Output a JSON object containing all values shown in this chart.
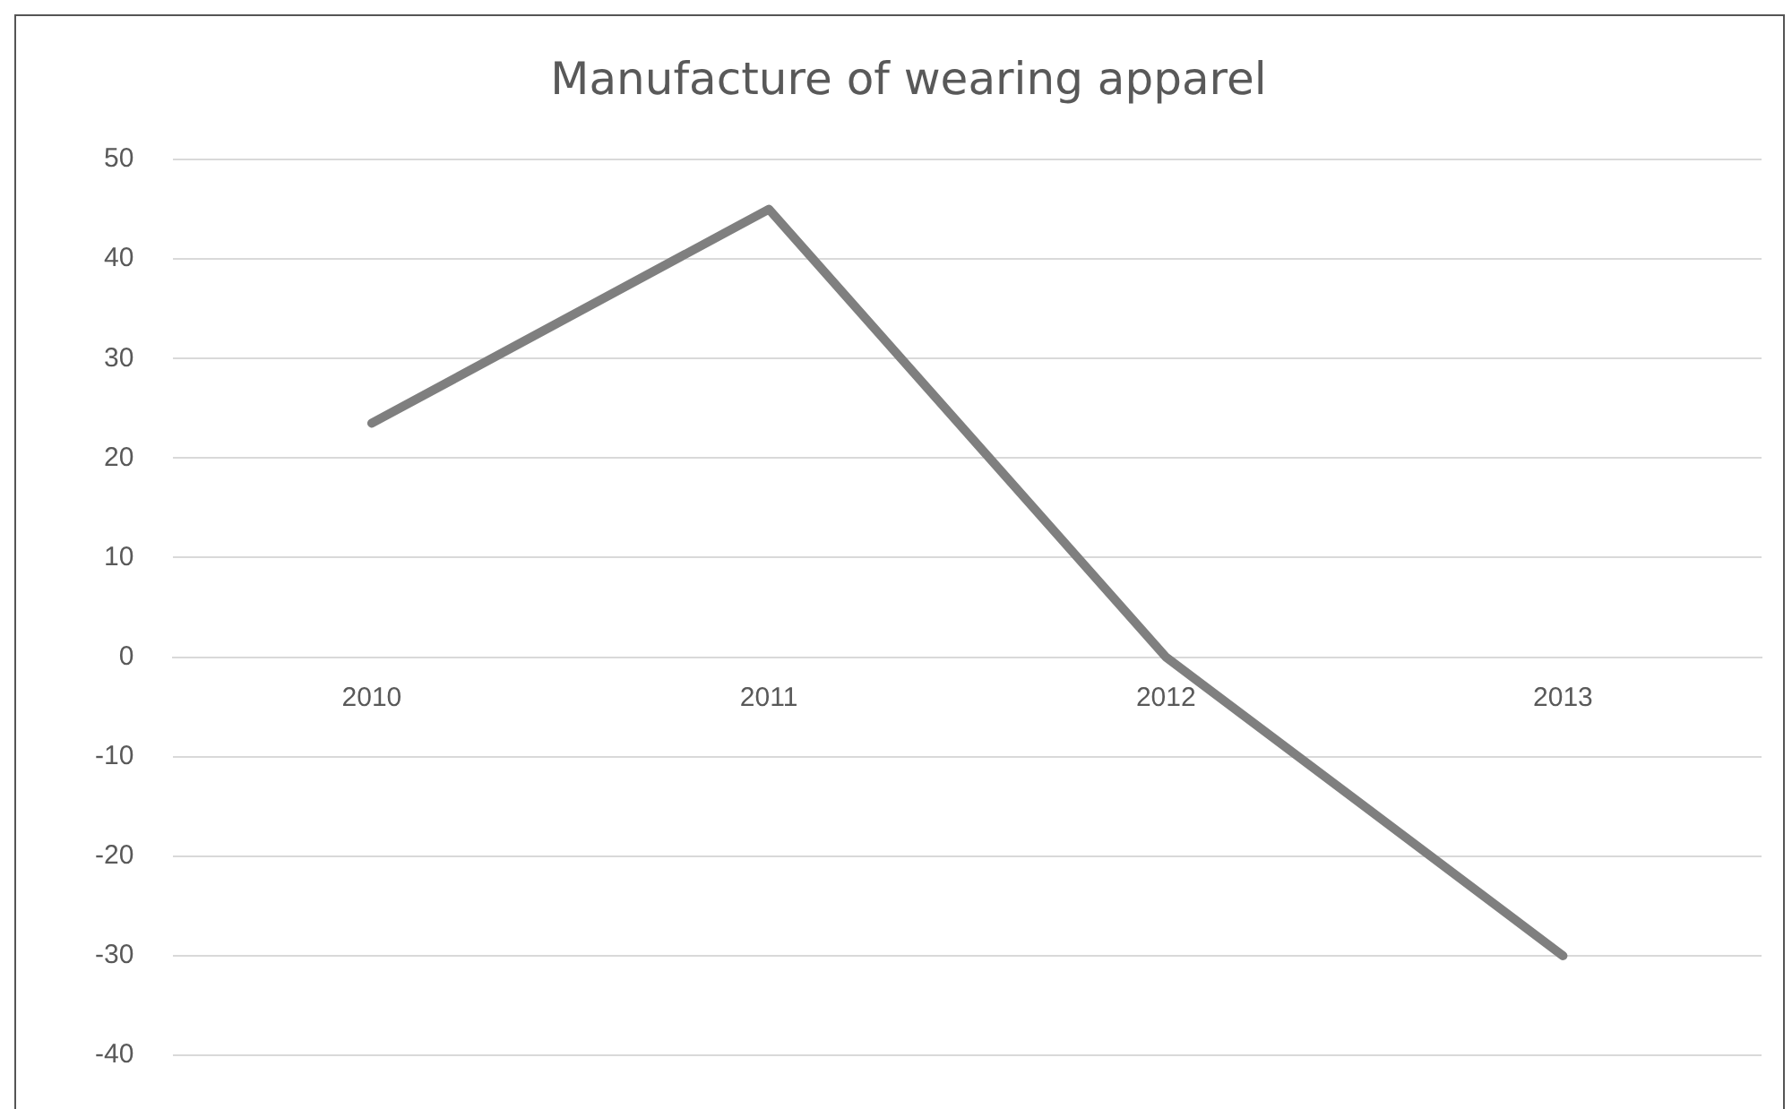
{
  "chart_data": {
    "type": "line",
    "title": "Manufacture of wearing apparel",
    "categories": [
      "2010",
      "2011",
      "2012",
      "2013"
    ],
    "series": [
      {
        "color": "#7f7f7f",
        "values": [
          23.5,
          45,
          0,
          -30
        ]
      }
    ],
    "ylim": [
      -40,
      50
    ],
    "yticks": [
      -40,
      -30,
      -20,
      -10,
      0,
      10,
      20,
      30,
      40,
      50
    ],
    "grid": "y",
    "legend": false,
    "marker": "none",
    "line_style": "solid"
  }
}
